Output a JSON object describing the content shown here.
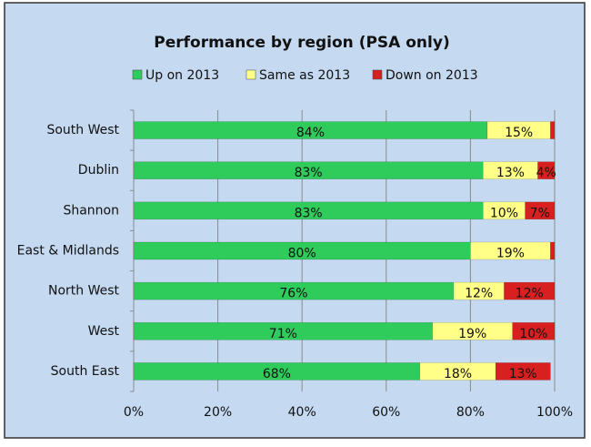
{
  "chart_data": {
    "type": "stacked-bar-horizontal",
    "title": "Performance by region (PSA only)",
    "categories": [
      "South West",
      "Dublin",
      "Shannon",
      "East & Midlands",
      "North West",
      "West",
      "South East"
    ],
    "series": [
      {
        "name": "Up on 2013",
        "color": "#2fcc5c",
        "values": [
          84,
          83,
          83,
          80,
          76,
          71,
          68
        ],
        "value_labels": [
          "84%",
          "83%",
          "83%",
          "80%",
          "76%",
          "71%",
          "68%"
        ]
      },
      {
        "name": "Same as 2013",
        "color": "#ffff88",
        "values": [
          15,
          13,
          10,
          19,
          12,
          19,
          18
        ],
        "value_labels": [
          "15%",
          "13%",
          "10%",
          "19%",
          "12%",
          "19%",
          "18%"
        ]
      },
      {
        "name": "Down on 2013",
        "color": "#d92020",
        "values": [
          1,
          4,
          7,
          1,
          12,
          10,
          13
        ],
        "value_labels": [
          null,
          "4%",
          "7%",
          null,
          "12%",
          "10%",
          "13%"
        ]
      }
    ],
    "xlim": [
      0,
      100
    ],
    "xticks": [
      {
        "value": 0,
        "label": "0%"
      },
      {
        "value": 20,
        "label": "20%"
      },
      {
        "value": 40,
        "label": "40%"
      },
      {
        "value": 60,
        "label": "60%"
      },
      {
        "value": 80,
        "label": "80%"
      },
      {
        "value": 100,
        "label": "100%"
      }
    ],
    "grid": true,
    "legend": "top"
  }
}
